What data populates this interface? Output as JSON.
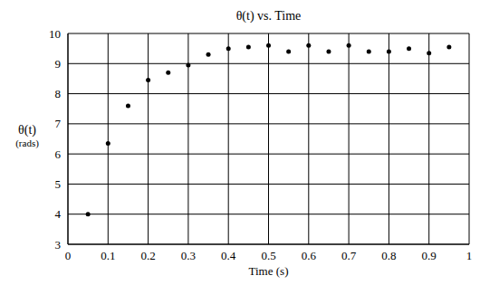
{
  "chart_data": {
    "type": "scatter",
    "title": "θ(t) vs. Time",
    "x_label": "Time (s)",
    "y_label": "θ(t)\n(rads)",
    "x": [
      0.05,
      0.1,
      0.15,
      0.2,
      0.25,
      0.3,
      0.35,
      0.4,
      0.45,
      0.5,
      0.55,
      0.6,
      0.65,
      0.7,
      0.75,
      0.8,
      0.85,
      0.9,
      0.95
    ],
    "values": [
      4.0,
      6.35,
      7.6,
      8.45,
      8.7,
      8.95,
      9.3,
      9.5,
      9.55,
      9.6,
      9.4,
      9.6,
      9.4,
      9.6,
      9.4,
      9.4,
      9.5,
      9.35,
      9.55
    ],
    "color": "#000000",
    "marker": "circle",
    "xlim": [
      0,
      1
    ],
    "xticks": [
      0,
      0.1,
      0.2,
      0.3,
      0.4,
      0.5,
      0.6,
      0.7,
      0.8,
      0.9,
      1
    ],
    "ylim": [
      3,
      10
    ],
    "yticks": [
      3,
      4,
      5,
      6,
      7,
      8,
      9,
      10
    ],
    "grid": true
  }
}
